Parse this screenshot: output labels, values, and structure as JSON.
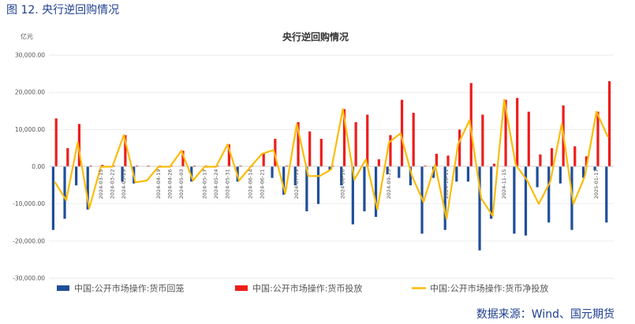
{
  "caption": "图 12.  央行逆回购情况",
  "source": "数据来源：Wind、国元期货",
  "chart_data": {
    "type": "bar",
    "title": "央行逆回购情况",
    "yunit": "亿元",
    "ylim": [
      -30000,
      30000
    ],
    "yticks": [
      "30,000.00",
      "20,000.00",
      "10,000.00",
      "0.00",
      "-10,000.00",
      "-20,000.00",
      "-30,000.00"
    ],
    "categories": [
      "",
      "",
      "",
      "",
      "2024-03-15",
      "2024-03-22",
      "2024-03-29",
      "",
      "",
      "2024-04-19",
      "2024-04-26",
      "2024-05-03",
      "",
      "2024-05-17",
      "2024-05-24",
      "2024-05-31",
      "",
      "2024-06-14",
      "2024-06-21",
      "",
      "",
      "2024-07-19",
      "",
      "",
      "",
      "2024-08-16",
      "",
      "",
      "",
      "2024-09-13",
      "",
      "",
      "",
      "",
      "2024-10-11",
      "",
      "",
      "",
      "",
      "2024-11-15",
      "",
      "",
      "",
      "",
      "",
      "",
      "",
      "2025-01-17",
      ""
    ],
    "series": [
      {
        "name": "中国:公开市场操作:货币回笼",
        "color": "#1f4e9a",
        "values": [
          -17000,
          -14000,
          -5000,
          -11500,
          0,
          0,
          -4000,
          -4500,
          0,
          0,
          0,
          0,
          -4000,
          0,
          0,
          0,
          -4000,
          0,
          0,
          -3000,
          -7500,
          -5000,
          -12000,
          -10000,
          -1000,
          -5000,
          -15500,
          -12000,
          -13500,
          -2000,
          -3000,
          -5000,
          -18000,
          -3000,
          -17000,
          -4000,
          -4000,
          -22500,
          -14000,
          0,
          -18000,
          -18500,
          -5500,
          -15000,
          -4500,
          -17000,
          -3000,
          -1000,
          -15000
        ]
      },
      {
        "name": "中国:公开市场操作:货币投放",
        "color": "#ee1c1c",
        "values": [
          13000,
          5000,
          11500,
          300,
          500,
          300,
          8500,
          300,
          300,
          300,
          300,
          4300,
          300,
          300,
          300,
          6000,
          300,
          300,
          3500,
          7500,
          300,
          12000,
          9500,
          7500,
          300,
          15500,
          12000,
          14000,
          2000,
          8500,
          18000,
          14500,
          300,
          3500,
          3000,
          10000,
          22500,
          14000,
          800,
          18000,
          18500,
          14800,
          3300,
          5000,
          16500,
          5500,
          2800,
          14800,
          23000
        ]
      },
      {
        "name": "中国:公开市场操作:货币净投放",
        "color": "#fbbc09",
        "values": [
          -4000,
          -9000,
          6500,
          -11200,
          0,
          0,
          8500,
          -4200,
          -3700,
          0,
          0,
          4300,
          -3700,
          0,
          0,
          6000,
          -3700,
          0,
          3500,
          4500,
          -7200,
          11500,
          -2500,
          -2500,
          -700,
          15500,
          -3500,
          2000,
          -11500,
          6500,
          9000,
          -2500,
          -9500,
          500,
          -14000,
          6000,
          12500,
          -8500,
          -13200,
          18000,
          500,
          -3700,
          -10000,
          -4000,
          11500,
          -10000,
          -2500,
          14800,
          8000
        ]
      }
    ]
  }
}
